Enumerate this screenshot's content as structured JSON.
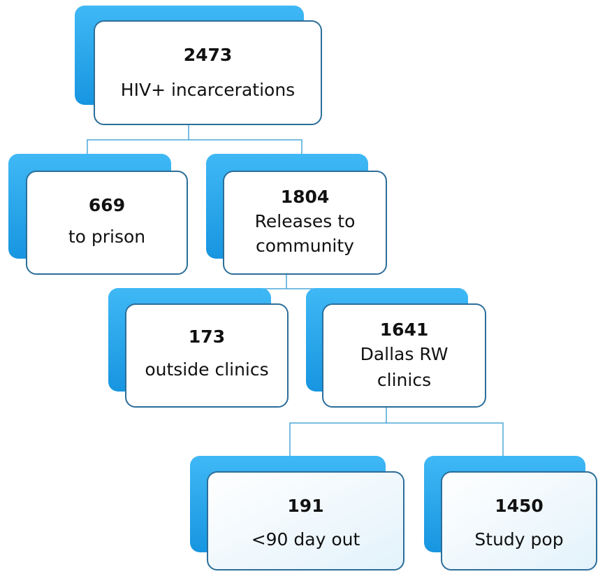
{
  "nodes": [
    {
      "count": 2473,
      "label": [
        "HIV+ incarcerations"
      ]
    },
    {
      "count": 669,
      "label": [
        "to prison"
      ]
    },
    {
      "count": 1804,
      "label": [
        "Releases to",
        "community"
      ]
    },
    {
      "count": 173,
      "label": [
        "outside clinics"
      ]
    },
    {
      "count": 1641,
      "label": [
        "Dallas RW",
        "clinics"
      ]
    },
    {
      "count": 191,
      "label": [
        "<90 day out"
      ]
    },
    {
      "count": 1450,
      "label": [
        "Study pop"
      ]
    }
  ]
}
